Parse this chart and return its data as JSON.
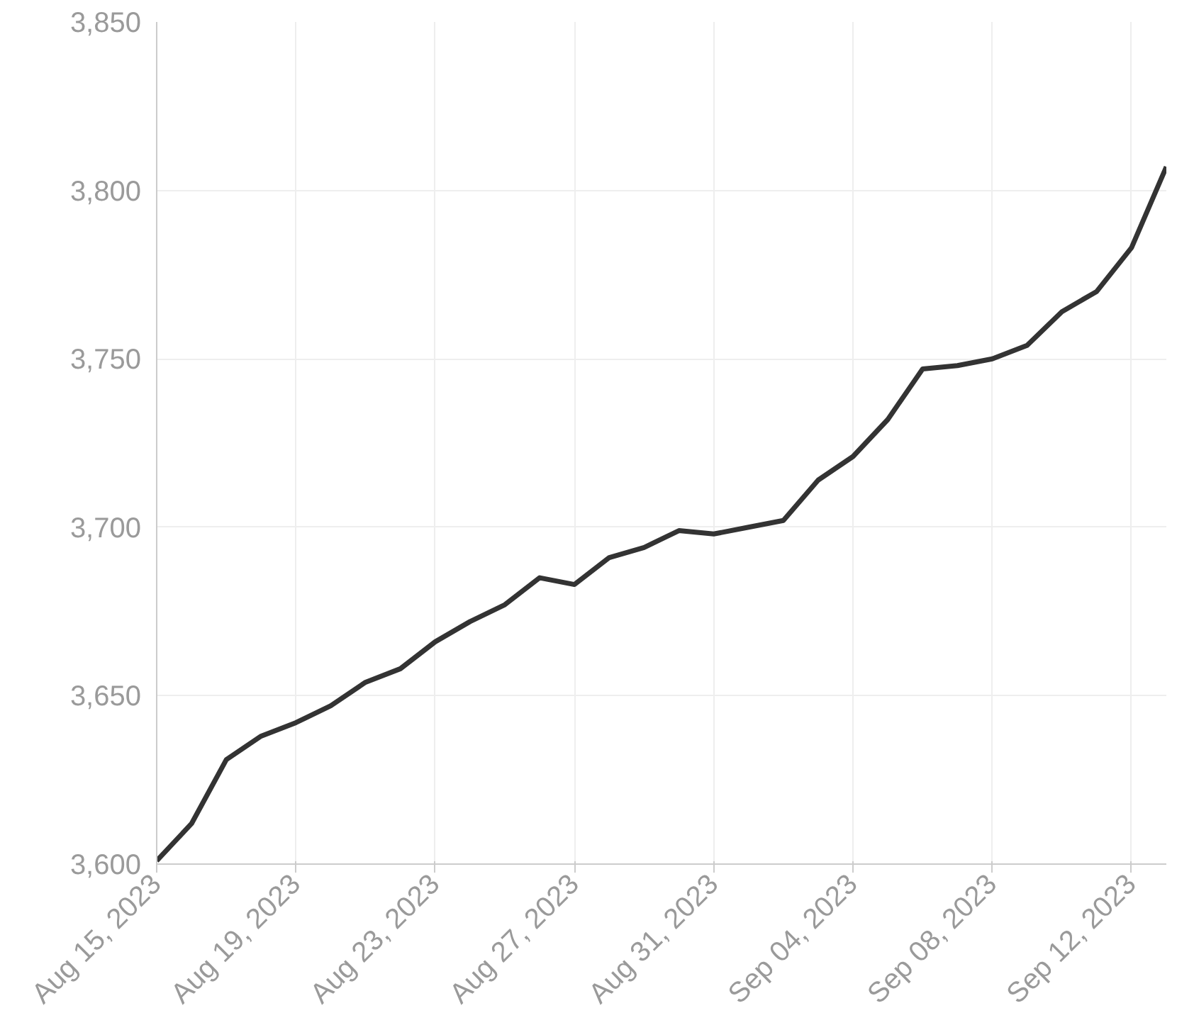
{
  "chart_data": {
    "type": "line",
    "x": [
      "2023-08-15",
      "2023-08-16",
      "2023-08-17",
      "2023-08-18",
      "2023-08-19",
      "2023-08-20",
      "2023-08-21",
      "2023-08-22",
      "2023-08-23",
      "2023-08-24",
      "2023-08-25",
      "2023-08-26",
      "2023-08-27",
      "2023-08-28",
      "2023-08-29",
      "2023-08-30",
      "2023-08-31",
      "2023-09-01",
      "2023-09-02",
      "2023-09-03",
      "2023-09-04",
      "2023-09-05",
      "2023-09-06",
      "2023-09-07",
      "2023-09-08",
      "2023-09-09",
      "2023-09-10",
      "2023-09-11",
      "2023-09-12",
      "2023-09-13"
    ],
    "series": [
      {
        "color": "#333333",
        "values": [
          3601,
          3612,
          3631,
          3638,
          3642,
          3647,
          3654,
          3658,
          3666,
          3672,
          3677,
          3685,
          3683,
          3691,
          3694,
          3699,
          3698,
          3700,
          3702,
          3714,
          3721,
          3732,
          3747,
          3748,
          3750,
          3754,
          3764,
          3770,
          3783,
          3807
        ]
      }
    ],
    "xlim": [
      "2023-08-15",
      "2023-09-13"
    ],
    "xticks": [
      {
        "value": "2023-08-15",
        "label": "Aug 15, 2023"
      },
      {
        "value": "2023-08-19",
        "label": "Aug 19, 2023"
      },
      {
        "value": "2023-08-23",
        "label": "Aug 23, 2023"
      },
      {
        "value": "2023-08-27",
        "label": "Aug 27, 2023"
      },
      {
        "value": "2023-08-31",
        "label": "Aug 31, 2023"
      },
      {
        "value": "2023-09-04",
        "label": "Sep 04, 2023"
      },
      {
        "value": "2023-09-08",
        "label": "Sep 08, 2023"
      },
      {
        "value": "2023-09-12",
        "label": "Sep 12, 2023"
      }
    ],
    "ylim": [
      3600,
      3850
    ],
    "yticks": [
      {
        "value": 3600,
        "label": "3,600"
      },
      {
        "value": 3650,
        "label": "3,650"
      },
      {
        "value": 3700,
        "label": "3,700"
      },
      {
        "value": 3750,
        "label": "3,750"
      },
      {
        "value": 3800,
        "label": "3,800"
      },
      {
        "value": 3850,
        "label": "3,850"
      }
    ],
    "grid": true,
    "marker": "none",
    "line_style": "solid"
  }
}
